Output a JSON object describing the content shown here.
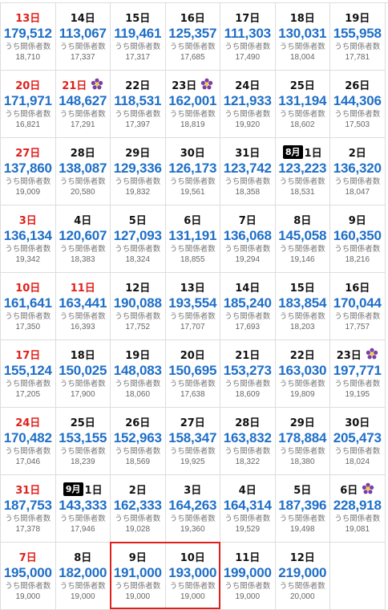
{
  "sub_label": "うち関係者数",
  "colors": {
    "value": "#1f6fc8",
    "holiday": "#e0201b",
    "highlight": "#e0201b"
  },
  "icons": {
    "holiday": "purple-flower-icon"
  },
  "cells": [
    {
      "day": "13日",
      "red": true,
      "total": "179,512",
      "staff": "18,710"
    },
    {
      "day": "14日",
      "total": "113,067",
      "staff": "17,337"
    },
    {
      "day": "15日",
      "total": "119,461",
      "staff": "17,317"
    },
    {
      "day": "16日",
      "total": "125,357",
      "staff": "17,685"
    },
    {
      "day": "17日",
      "total": "111,303",
      "staff": "17,490"
    },
    {
      "day": "18日",
      "total": "130,031",
      "staff": "18,004"
    },
    {
      "day": "19日",
      "total": "155,958",
      "staff": "17,781"
    },
    {
      "day": "20日",
      "red": true,
      "total": "171,971",
      "staff": "16,821"
    },
    {
      "day": "21日",
      "red": true,
      "holiday": true,
      "total": "148,627",
      "staff": "17,291"
    },
    {
      "day": "22日",
      "total": "118,531",
      "staff": "17,397"
    },
    {
      "day": "23日",
      "holiday": true,
      "total": "162,001",
      "staff": "18,819"
    },
    {
      "day": "24日",
      "total": "121,933",
      "staff": "19,920"
    },
    {
      "day": "25日",
      "total": "131,194",
      "staff": "18,602"
    },
    {
      "day": "26日",
      "total": "144,306",
      "staff": "17,503"
    },
    {
      "day": "27日",
      "red": true,
      "total": "137,860",
      "staff": "19,009"
    },
    {
      "day": "28日",
      "total": "138,087",
      "staff": "20,580"
    },
    {
      "day": "29日",
      "total": "129,336",
      "staff": "19,832"
    },
    {
      "day": "30日",
      "total": "126,173",
      "staff": "19,561"
    },
    {
      "day": "31日",
      "total": "123,742",
      "staff": "18,358"
    },
    {
      "day": "1日",
      "month": "8月",
      "total": "123,223",
      "staff": "18,531"
    },
    {
      "day": "2日",
      "total": "136,320",
      "staff": "18,047"
    },
    {
      "day": "3日",
      "red": true,
      "total": "136,134",
      "staff": "19,342"
    },
    {
      "day": "4日",
      "total": "120,607",
      "staff": "18,383"
    },
    {
      "day": "5日",
      "total": "127,093",
      "staff": "18,324"
    },
    {
      "day": "6日",
      "total": "131,191",
      "staff": "18,855"
    },
    {
      "day": "7日",
      "total": "136,068",
      "staff": "19,294"
    },
    {
      "day": "8日",
      "total": "145,058",
      "staff": "19,146"
    },
    {
      "day": "9日",
      "total": "160,350",
      "staff": "18,216"
    },
    {
      "day": "10日",
      "red": true,
      "total": "161,641",
      "staff": "17,350"
    },
    {
      "day": "11日",
      "red": true,
      "total": "163,441",
      "staff": "16,393"
    },
    {
      "day": "12日",
      "total": "190,088",
      "staff": "17,752"
    },
    {
      "day": "13日",
      "total": "193,554",
      "staff": "17,707"
    },
    {
      "day": "14日",
      "total": "185,240",
      "staff": "17,693"
    },
    {
      "day": "15日",
      "total": "183,854",
      "staff": "18,203"
    },
    {
      "day": "16日",
      "total": "170,044",
      "staff": "17,757"
    },
    {
      "day": "17日",
      "red": true,
      "total": "155,124",
      "staff": "17,205"
    },
    {
      "day": "18日",
      "total": "150,025",
      "staff": "17,900"
    },
    {
      "day": "19日",
      "total": "148,083",
      "staff": "18,060"
    },
    {
      "day": "20日",
      "total": "150,695",
      "staff": "17,638"
    },
    {
      "day": "21日",
      "total": "153,273",
      "staff": "18,609"
    },
    {
      "day": "22日",
      "total": "163,030",
      "staff": "19,809"
    },
    {
      "day": "23日",
      "holiday": true,
      "total": "197,771",
      "staff": "19,195"
    },
    {
      "day": "24日",
      "red": true,
      "total": "170,482",
      "staff": "17,046"
    },
    {
      "day": "25日",
      "total": "153,155",
      "staff": "18,239"
    },
    {
      "day": "26日",
      "total": "152,963",
      "staff": "18,569"
    },
    {
      "day": "27日",
      "total": "158,347",
      "staff": "19,925"
    },
    {
      "day": "28日",
      "total": "163,832",
      "staff": "18,322"
    },
    {
      "day": "29日",
      "total": "178,884",
      "staff": "18,380"
    },
    {
      "day": "30日",
      "total": "205,473",
      "staff": "18,024"
    },
    {
      "day": "31日",
      "red": true,
      "total": "187,753",
      "staff": "17,378"
    },
    {
      "day": "1日",
      "month": "9月",
      "total": "143,333",
      "staff": "17,946"
    },
    {
      "day": "2日",
      "total": "162,333",
      "staff": "19,028"
    },
    {
      "day": "3日",
      "total": "164,263",
      "staff": "19,360"
    },
    {
      "day": "4日",
      "total": "164,314",
      "staff": "19,529"
    },
    {
      "day": "5日",
      "total": "187,396",
      "staff": "19,498"
    },
    {
      "day": "6日",
      "holiday": true,
      "total": "228,918",
      "staff": "19,081"
    },
    {
      "day": "7日",
      "red": true,
      "total": "195,000",
      "staff": "19,000"
    },
    {
      "day": "8日",
      "total": "182,000",
      "staff": "19,000"
    },
    {
      "day": "9日",
      "total": "191,000",
      "staff": "19,000"
    },
    {
      "day": "10日",
      "total": "193,000",
      "staff": "19,000"
    },
    {
      "day": "11日",
      "total": "199,000",
      "staff": "19,000"
    },
    {
      "day": "12日",
      "total": "219,000",
      "staff": "20,000"
    },
    {
      "empty": true
    }
  ]
}
